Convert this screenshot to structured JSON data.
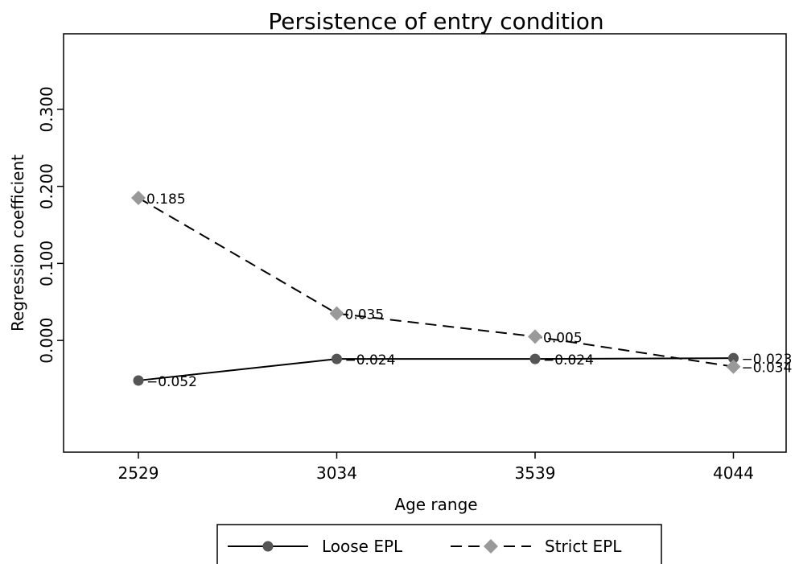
{
  "chart_data": {
    "type": "line",
    "title": "Persistence of entry condition",
    "x_label": "Age range",
    "y_label": "Regression coefficient",
    "categories": [
      "2529",
      "3034",
      "3539",
      "4044"
    ],
    "series": [
      {
        "name": "Loose EPL",
        "color": "#555555",
        "linestyle": "solid",
        "marker": "circle",
        "values": [
          -0.052,
          -0.024,
          -0.024,
          -0.023
        ],
        "value_labels": [
          "−0.052",
          "−0.024",
          "−0.024",
          "−0.023"
        ]
      },
      {
        "name": "Strict EPL",
        "color": "#999999",
        "linestyle": "dashed",
        "marker": "diamond",
        "values": [
          0.185,
          0.035,
          0.005,
          -0.034
        ],
        "value_labels": [
          "0.185",
          "0.035",
          "0.005",
          "−0.034"
        ]
      }
    ],
    "ylim": [
      -0.145,
      0.398
    ],
    "yticks": [
      {
        "value": 0,
        "label": "0.000"
      },
      {
        "value": 0.1,
        "label": "0.100"
      },
      {
        "value": 0.2,
        "label": "0.200"
      },
      {
        "value": 0.3,
        "label": "0.300"
      }
    ],
    "grid": false,
    "legend": "bottom"
  }
}
